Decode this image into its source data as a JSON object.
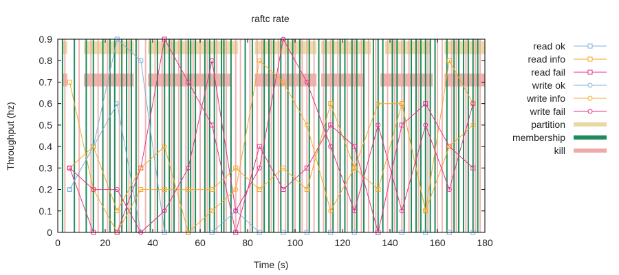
{
  "chart_data": {
    "type": "line",
    "title": "raftc rate",
    "xlabel": "Time (s)",
    "ylabel": "Throughput (hz)",
    "xlim": [
      0,
      180
    ],
    "ylim": [
      0,
      0.9
    ],
    "x_ticks": [
      "0",
      "20",
      "40",
      "60",
      "80",
      "100",
      "120",
      "140",
      "160",
      "180"
    ],
    "y_ticks": [
      "0",
      "0.1",
      "0.2",
      "0.3",
      "0.4",
      "0.5",
      "0.6",
      "0.7",
      "0.8",
      "0.9"
    ],
    "x_tick_values": [
      0,
      20,
      40,
      60,
      80,
      100,
      120,
      140,
      160,
      180
    ],
    "y_tick_values": [
      0,
      0.1,
      0.2,
      0.3,
      0.4,
      0.5,
      0.6,
      0.7,
      0.8,
      0.9
    ],
    "grid": false,
    "legend_position": "right",
    "series": [
      {
        "name": "read ok",
        "color": "#7fb2d9",
        "marker": "square",
        "x": [
          5,
          15,
          25,
          35,
          45,
          55,
          65,
          75,
          85,
          95,
          105,
          115,
          125,
          135,
          145,
          155,
          165,
          175
        ],
        "y": [
          0.2,
          0.4,
          0.9,
          0.8,
          0.0,
          0.0,
          0.0,
          0.1,
          0.0,
          0.0,
          0.0,
          0.0,
          0.0,
          0.0,
          0.0,
          0.0,
          0.0,
          0.0
        ]
      },
      {
        "name": "read info",
        "color": "#f5a623",
        "marker": "square",
        "x": [
          5,
          15,
          25,
          35,
          45,
          55,
          65,
          75,
          85,
          95,
          105,
          115,
          125,
          135,
          145,
          155,
          165,
          175
        ],
        "y": [
          0.7,
          0.2,
          0.0,
          0.2,
          0.2,
          0.2,
          0.2,
          0.3,
          0.2,
          0.3,
          0.2,
          0.6,
          0.3,
          0.2,
          0.6,
          0.1,
          0.8,
          0.6
        ]
      },
      {
        "name": "read fail",
        "color": "#e4308b",
        "marker": "square",
        "x": [
          5,
          15,
          25,
          35,
          45,
          55,
          65,
          75,
          85,
          95,
          105,
          115,
          125,
          135,
          145,
          155,
          165,
          175
        ],
        "y": [
          0.3,
          0.0,
          0.0,
          0.3,
          0.9,
          0.7,
          0.5,
          0.0,
          0.4,
          0.2,
          0.3,
          0.5,
          0.4,
          0.0,
          0.5,
          0.6,
          0.4,
          0.3
        ]
      },
      {
        "name": "write ok",
        "color": "#7fb2d9",
        "marker": "circle",
        "x": [
          5,
          15,
          25,
          35,
          45
        ],
        "y": [
          0.2,
          0.4,
          0.6,
          0.0,
          0.1
        ]
      },
      {
        "name": "write info",
        "color": "#f5a623",
        "marker": "circle",
        "x": [
          5,
          15,
          25,
          35,
          45,
          55,
          65,
          75,
          85,
          95,
          105,
          115,
          125,
          135,
          145,
          155,
          165,
          175
        ],
        "y": [
          0.3,
          0.4,
          0.1,
          0.3,
          0.4,
          0.0,
          0.1,
          0.2,
          0.8,
          0.7,
          0.5,
          0.1,
          0.3,
          0.6,
          0.6,
          0.1,
          0.4,
          0.5
        ]
      },
      {
        "name": "write fail",
        "color": "#e4308b",
        "marker": "circle",
        "x": [
          5,
          15,
          25,
          35,
          45,
          55,
          65,
          75,
          85,
          95,
          105,
          115,
          125,
          135,
          145,
          155,
          165,
          175
        ],
        "y": [
          0.3,
          0.2,
          0.2,
          0.0,
          0.1,
          0.3,
          0.8,
          0.1,
          0.3,
          0.9,
          0.7,
          0.4,
          0.1,
          0.5,
          0.1,
          0.5,
          0.2,
          0.6
        ]
      }
    ],
    "bands": [
      {
        "name": "partition",
        "color": "#e8d9a0",
        "y_range": [
          0.83,
          0.89
        ],
        "intervals": [
          [
            2,
            4
          ],
          [
            11,
            32
          ],
          [
            38,
            76
          ],
          [
            83,
            109
          ],
          [
            111,
            132
          ],
          [
            138,
            157
          ],
          [
            163,
            180
          ]
        ]
      },
      {
        "name": "kill",
        "color": "#eeaaa5",
        "y_range": [
          0.68,
          0.74
        ],
        "intervals": [
          [
            2,
            4
          ],
          [
            11,
            32
          ],
          [
            38,
            73
          ],
          [
            83,
            109
          ],
          [
            111,
            129
          ],
          [
            136,
            158
          ],
          [
            163,
            180
          ]
        ]
      }
    ],
    "membership": {
      "name": "membership",
      "color": "#1f8a5a",
      "x": [
        2,
        7,
        12,
        15,
        19,
        22,
        24,
        27,
        29,
        31,
        33,
        39,
        42,
        45,
        47,
        49,
        52,
        55,
        56,
        58,
        62,
        64,
        66,
        69,
        70,
        73,
        79,
        82,
        87,
        89,
        91,
        94,
        97,
        99,
        102,
        106,
        110,
        113,
        116,
        119,
        121,
        124,
        126,
        129,
        133,
        135,
        137,
        141,
        143,
        146,
        149,
        151,
        153,
        155,
        157,
        159,
        164,
        167,
        169,
        171,
        173,
        175,
        177
      ]
    },
    "kill_lines": {
      "name": "kill",
      "color": "#eeaaa5",
      "x": [
        3,
        9,
        14,
        17,
        21,
        26,
        30,
        34,
        37,
        41,
        44,
        48,
        51,
        54,
        57,
        60,
        63,
        67,
        71,
        75,
        77,
        81,
        84,
        86,
        90,
        93,
        96,
        100,
        103,
        105,
        108,
        112,
        115,
        118,
        122,
        125,
        128,
        131,
        134,
        139,
        142,
        145,
        148,
        152,
        156,
        160,
        162,
        166,
        168,
        172,
        176,
        178
      ]
    },
    "legend": [
      {
        "label": "read ok",
        "color": "#7fb2d9",
        "kind": "line-square"
      },
      {
        "label": "read info",
        "color": "#f5a623",
        "kind": "line-square"
      },
      {
        "label": "read fail",
        "color": "#e4308b",
        "kind": "line-square"
      },
      {
        "label": "write ok",
        "color": "#7fb2d9",
        "kind": "line-circle"
      },
      {
        "label": "write info",
        "color": "#f5a623",
        "kind": "line-circle"
      },
      {
        "label": "write fail",
        "color": "#e4308b",
        "kind": "line-circle"
      },
      {
        "label": "partition",
        "color": "#e8d9a0",
        "kind": "bar"
      },
      {
        "label": "membership",
        "color": "#1f8a5a",
        "kind": "bar"
      },
      {
        "label": "kill",
        "color": "#eeaaa5",
        "kind": "bar"
      }
    ]
  }
}
